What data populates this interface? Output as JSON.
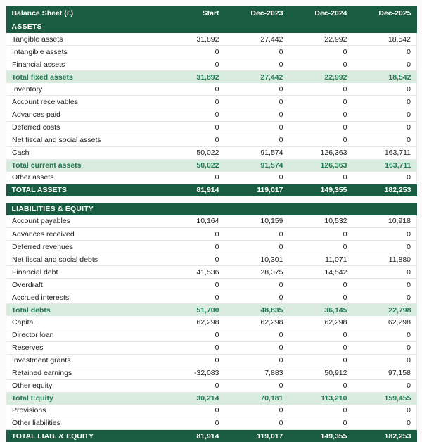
{
  "colors": {
    "header_bg": "#1a5c42",
    "subtotal_bg": "#d9ecdf",
    "subtotal_text": "#227a50",
    "row_border": "#e7e7e7",
    "body_text": "#1c1c1c"
  },
  "table": {
    "title": "Balance Sheet (£)",
    "columns": [
      "Start",
      "Dec-2023",
      "Dec-2024",
      "Dec-2025"
    ],
    "sections": [
      {
        "name": "ASSETS",
        "rows": [
          {
            "label": "Tangible assets",
            "values": [
              "31,892",
              "27,442",
              "22,992",
              "18,542"
            ],
            "style": "normal"
          },
          {
            "label": "Intangible assets",
            "values": [
              "0",
              "0",
              "0",
              "0"
            ],
            "style": "normal"
          },
          {
            "label": "Financial assets",
            "values": [
              "0",
              "0",
              "0",
              "0"
            ],
            "style": "normal"
          },
          {
            "label": "Total fixed assets",
            "values": [
              "31,892",
              "27,442",
              "22,992",
              "18,542"
            ],
            "style": "subtotal"
          },
          {
            "label": "Inventory",
            "values": [
              "0",
              "0",
              "0",
              "0"
            ],
            "style": "normal"
          },
          {
            "label": "Account receivables",
            "values": [
              "0",
              "0",
              "0",
              "0"
            ],
            "style": "normal"
          },
          {
            "label": "Advances paid",
            "values": [
              "0",
              "0",
              "0",
              "0"
            ],
            "style": "normal"
          },
          {
            "label": "Deferred costs",
            "values": [
              "0",
              "0",
              "0",
              "0"
            ],
            "style": "normal"
          },
          {
            "label": "Net fiscal and social assets",
            "values": [
              "0",
              "0",
              "0",
              "0"
            ],
            "style": "normal"
          },
          {
            "label": "Cash",
            "values": [
              "50,022",
              "91,574",
              "126,363",
              "163,711"
            ],
            "style": "normal"
          },
          {
            "label": "Total current assets",
            "values": [
              "50,022",
              "91,574",
              "126,363",
              "163,711"
            ],
            "style": "subtotal"
          },
          {
            "label": "Other assets",
            "values": [
              "0",
              "0",
              "0",
              "0"
            ],
            "style": "normal"
          },
          {
            "label": "TOTAL ASSETS",
            "values": [
              "81,914",
              "119,017",
              "149,355",
              "182,253"
            ],
            "style": "total"
          }
        ]
      },
      {
        "name": "LIABILITIES & EQUITY",
        "rows": [
          {
            "label": "Account payables",
            "values": [
              "10,164",
              "10,159",
              "10,532",
              "10,918"
            ],
            "style": "normal"
          },
          {
            "label": "Advances received",
            "values": [
              "0",
              "0",
              "0",
              "0"
            ],
            "style": "normal"
          },
          {
            "label": "Deferred revenues",
            "values": [
              "0",
              "0",
              "0",
              "0"
            ],
            "style": "normal"
          },
          {
            "label": "Net fiscal and social debts",
            "values": [
              "0",
              "10,301",
              "11,071",
              "11,880"
            ],
            "style": "normal"
          },
          {
            "label": "Financial debt",
            "values": [
              "41,536",
              "28,375",
              "14,542",
              "0"
            ],
            "style": "normal"
          },
          {
            "label": "Overdraft",
            "values": [
              "0",
              "0",
              "0",
              "0"
            ],
            "style": "normal"
          },
          {
            "label": "Accrued interests",
            "values": [
              "0",
              "0",
              "0",
              "0"
            ],
            "style": "normal"
          },
          {
            "label": "Total debts",
            "values": [
              "51,700",
              "48,835",
              "36,145",
              "22,798"
            ],
            "style": "subtotal"
          },
          {
            "label": "Capital",
            "values": [
              "62,298",
              "62,298",
              "62,298",
              "62,298"
            ],
            "style": "normal"
          },
          {
            "label": "Director loan",
            "values": [
              "0",
              "0",
              "0",
              "0"
            ],
            "style": "normal"
          },
          {
            "label": "Reserves",
            "values": [
              "0",
              "0",
              "0",
              "0"
            ],
            "style": "normal"
          },
          {
            "label": "Investment grants",
            "values": [
              "0",
              "0",
              "0",
              "0"
            ],
            "style": "normal"
          },
          {
            "label": "Retained earnings",
            "values": [
              "-32,083",
              "7,883",
              "50,912",
              "97,158"
            ],
            "style": "normal"
          },
          {
            "label": "Other equity",
            "values": [
              "0",
              "0",
              "0",
              "0"
            ],
            "style": "normal"
          },
          {
            "label": "Total Equity",
            "values": [
              "30,214",
              "70,181",
              "113,210",
              "159,455"
            ],
            "style": "subtotal"
          },
          {
            "label": "Provisions",
            "values": [
              "0",
              "0",
              "0",
              "0"
            ],
            "style": "normal"
          },
          {
            "label": "Other liabilities",
            "values": [
              "0",
              "0",
              "0",
              "0"
            ],
            "style": "normal"
          },
          {
            "label": "TOTAL LIAB. & EQUITY",
            "values": [
              "81,914",
              "119,017",
              "149,355",
              "182,253"
            ],
            "style": "total"
          }
        ]
      }
    ]
  }
}
